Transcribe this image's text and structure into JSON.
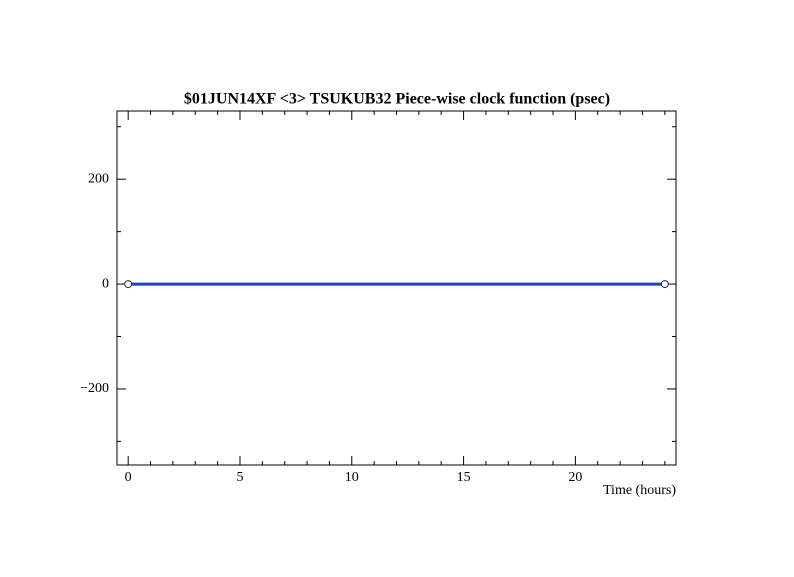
{
  "chart_data": {
    "type": "line",
    "title": "$01JUN14XF <3>  TSUKUB32  Piece-wise clock function (psec)",
    "x_label": "Time (hours)",
    "x": [
      0,
      24
    ],
    "series": [
      {
        "name": "TSUKUB32",
        "color": "#1f47b0",
        "values": [
          0,
          0
        ]
      }
    ],
    "xlim": [
      -0.5,
      24.5
    ],
    "xticks": [
      0,
      5,
      10,
      15,
      20
    ],
    "xminorticks": [
      1,
      2,
      3,
      4,
      6,
      7,
      8,
      9,
      11,
      12,
      13,
      14,
      16,
      17,
      18,
      19,
      21,
      22,
      23,
      24
    ],
    "ylim": [
      -345,
      330
    ],
    "yticks": [
      {
        "value": -200,
        "label": "−200"
      },
      0,
      200
    ],
    "yminorticks": [
      -300,
      -100,
      100,
      300
    ],
    "markers": true
  }
}
